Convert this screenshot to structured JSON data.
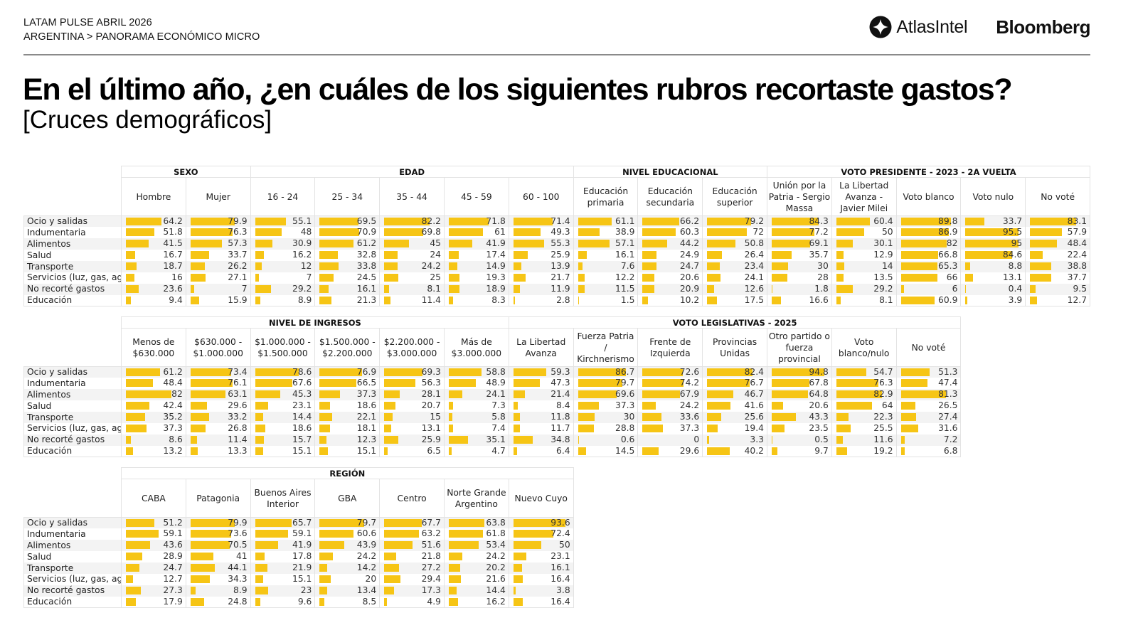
{
  "header": {
    "kicker_line1": "LATAM PULSE ABRIL 2026",
    "kicker_line2": "ARGENTINA > PANORAMA ECONÓMICO MICRO",
    "logo_atlas": "AtlasIntel",
    "logo_bloomberg": "Bloomberg",
    "title": "En el último año, ¿en cuáles de los siguientes rubros recortaste gastos?",
    "subtitle": "[Cruces demográficos]"
  },
  "colors": {
    "bar": "#f6c515",
    "stripe": "#f3f3f3",
    "grid": "#e3e3e3"
  },
  "chart_data": [
    {
      "type": "table",
      "title": "Table 1",
      "unit": "%",
      "bar_scale_max": 100,
      "rows": [
        "Ocio y salidas",
        "Indumentaria",
        "Alimentos",
        "Salud",
        "Transporte",
        "Servicios (luz, gas, agı",
        "No recorté gastos",
        "Educación"
      ],
      "groups": [
        {
          "name": "SEXO",
          "columns": [
            {
              "label": "Hombre",
              "values": [
                64.2,
                51.8,
                41.5,
                16.7,
                18.7,
                16,
                23.6,
                9.4
              ]
            },
            {
              "label": "Mujer",
              "values": [
                79.9,
                76.3,
                57.3,
                33.7,
                26.2,
                27.1,
                7,
                15.9
              ]
            }
          ]
        },
        {
          "name": "EDAD",
          "columns": [
            {
              "label": "16 - 24",
              "values": [
                55.1,
                48,
                30.9,
                16.2,
                12,
                7,
                29.2,
                8.9
              ]
            },
            {
              "label": "25 - 34",
              "values": [
                69.5,
                70.9,
                61.2,
                32.8,
                33.8,
                24.5,
                16.1,
                21.3
              ]
            },
            {
              "label": "35 - 44",
              "values": [
                82.2,
                69.8,
                45,
                24,
                24.2,
                25,
                8.1,
                11.4
              ]
            },
            {
              "label": "45 - 59",
              "values": [
                71.8,
                61,
                41.9,
                17.4,
                14.9,
                19.3,
                18.9,
                8.3
              ]
            },
            {
              "label": "60 - 100",
              "values": [
                71.4,
                49.3,
                55.3,
                25.9,
                13.9,
                21.7,
                11.9,
                2.8
              ]
            }
          ]
        },
        {
          "name": "NIVEL EDUCACIONAL",
          "columns": [
            {
              "label": "Educación primaria",
              "values": [
                61.1,
                38.9,
                57.1,
                16.1,
                7.6,
                12.2,
                11.5,
                1.5
              ]
            },
            {
              "label": "Educación secundaria",
              "values": [
                66.2,
                60.3,
                44.2,
                24.9,
                24.7,
                20.6,
                20.9,
                10.2
              ]
            },
            {
              "label": "Educación superior",
              "values": [
                79.2,
                72,
                50.8,
                26.4,
                23.4,
                24.1,
                12.6,
                17.5
              ]
            }
          ]
        },
        {
          "name": "VOTO PRESIDENTE - 2023 - 2A VUELTA",
          "columns": [
            {
              "label": "Unión por la Patria - Sergio Massa",
              "values": [
                84.3,
                77.2,
                69.1,
                35.7,
                30,
                28,
                1.8,
                16.6
              ]
            },
            {
              "label": "La Libertad Avanza - Javier Milei",
              "values": [
                60.4,
                50,
                30.1,
                12.9,
                14,
                13.5,
                29.2,
                8.1
              ]
            },
            {
              "label": "Voto blanco",
              "values": [
                89.8,
                86.9,
                82,
                66.8,
                65.3,
                66,
                6,
                60.9
              ]
            },
            {
              "label": "Voto nulo",
              "values": [
                33.7,
                95.5,
                95,
                84.6,
                8.8,
                13.1,
                0.4,
                3.9
              ]
            },
            {
              "label": "No voté",
              "values": [
                83.1,
                57.9,
                48.4,
                22.4,
                38.8,
                37.7,
                9.5,
                12.7
              ]
            }
          ]
        }
      ]
    },
    {
      "type": "table",
      "title": "Table 2",
      "unit": "%",
      "bar_scale_max": 100,
      "rows": [
        "Ocio y salidas",
        "Indumentaria",
        "Alimentos",
        "Salud",
        "Transporte",
        "Servicios (luz, gas, agı",
        "No recorté gastos",
        "Educación"
      ],
      "groups": [
        {
          "name": "NIVEL DE INGRESOS",
          "columns": [
            {
              "label": "Menos de $630.000",
              "values": [
                61.2,
                48.4,
                82,
                42.4,
                35.2,
                37.3,
                8.6,
                13.2
              ]
            },
            {
              "label": "$630.000 - $1.000.000",
              "values": [
                73.4,
                76.1,
                63.1,
                29.6,
                33.2,
                26.8,
                11.4,
                13.3
              ]
            },
            {
              "label": "$1.000.000 - $1.500.000",
              "values": [
                78.6,
                67.6,
                45.3,
                23.1,
                14.4,
                18.6,
                15.7,
                15.1
              ]
            },
            {
              "label": "$1.500.000 - $2.200.000",
              "values": [
                76.9,
                66.5,
                37.3,
                18.6,
                22.1,
                18.1,
                12.3,
                15.1
              ]
            },
            {
              "label": "$2.200.000 - $3.000.000",
              "values": [
                69.3,
                56.3,
                28.1,
                20.7,
                15,
                13.1,
                25.9,
                6.5
              ]
            },
            {
              "label": "Más de $3.000.000",
              "values": [
                58.8,
                48.9,
                24.1,
                7.3,
                5.8,
                7.4,
                35.1,
                4.7
              ]
            }
          ]
        },
        {
          "name": "VOTO LEGISLATIVAS - 2025",
          "columns": [
            {
              "label": "La Libertad Avanza",
              "values": [
                59.3,
                47.3,
                21.4,
                8.4,
                11.8,
                11.7,
                34.8,
                6.4
              ]
            },
            {
              "label": "Fuerza Patria / Kirchnerismo",
              "values": [
                86.7,
                79.7,
                69.6,
                37.3,
                30,
                28.8,
                0.6,
                14.5
              ]
            },
            {
              "label": "Frente de Izquierda",
              "values": [
                72.6,
                74.2,
                67.9,
                24.2,
                33.6,
                37.3,
                0,
                29.6
              ]
            },
            {
              "label": "Provincias Unidas",
              "values": [
                82.4,
                76.7,
                46.7,
                41.6,
                25.6,
                19.4,
                3.3,
                40.2
              ]
            },
            {
              "label": "Otro partido o fuerza provincial",
              "values": [
                94.8,
                67.8,
                64.8,
                20.6,
                43.3,
                23.5,
                0.5,
                9.7
              ]
            },
            {
              "label": "Voto blanco/nulo",
              "values": [
                54.7,
                76.3,
                82.9,
                64,
                22.3,
                25.5,
                11.6,
                19.2
              ]
            },
            {
              "label": "No voté",
              "values": [
                51.3,
                47.4,
                81.3,
                26.5,
                27.4,
                31.6,
                7.2,
                6.8
              ]
            }
          ]
        }
      ]
    },
    {
      "type": "table",
      "title": "Table 3",
      "unit": "%",
      "bar_scale_max": 100,
      "rows": [
        "Ocio y salidas",
        "Indumentaria",
        "Alimentos",
        "Salud",
        "Transporte",
        "Servicios (luz, gas, agı",
        "No recorté gastos",
        "Educación"
      ],
      "groups": [
        {
          "name": "REGIÓN",
          "columns": [
            {
              "label": "CABA",
              "values": [
                51.2,
                59.1,
                43.6,
                28.9,
                24.7,
                12.7,
                27.3,
                17.9
              ]
            },
            {
              "label": "Patagonia",
              "values": [
                79.9,
                73.6,
                70.5,
                41,
                44.1,
                34.3,
                8.9,
                24.8
              ]
            },
            {
              "label": "Buenos Aires Interior",
              "values": [
                65.7,
                59.1,
                41.9,
                17.8,
                21.9,
                15.1,
                23,
                9.6
              ]
            },
            {
              "label": "GBA",
              "values": [
                79.7,
                60.6,
                43.9,
                24.2,
                14.2,
                20,
                13.4,
                8.5
              ]
            },
            {
              "label": "Centro",
              "values": [
                67.7,
                63.2,
                51.6,
                21.8,
                27.2,
                29.4,
                17.3,
                4.9
              ]
            },
            {
              "label": "Norte Grande Argentino",
              "values": [
                63.8,
                61.8,
                53.4,
                24.2,
                20.2,
                21.6,
                14.4,
                16.2
              ]
            },
            {
              "label": "Nuevo Cuyo",
              "values": [
                93.6,
                72.4,
                50,
                23.1,
                16.1,
                16.4,
                3.8,
                16.4
              ]
            }
          ]
        }
      ]
    }
  ]
}
